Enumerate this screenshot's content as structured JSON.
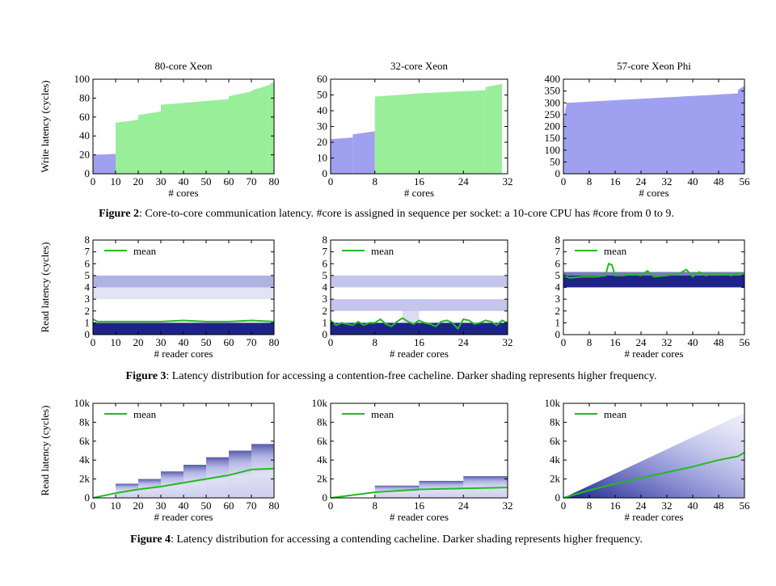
{
  "colors": {
    "green": "#99ee99",
    "blue": "#a0a0f0",
    "navy": "#1e238a",
    "mid_blue": "#7a7fd0",
    "light_blue": "#c4c6ea",
    "mean_line": "#22bb22"
  },
  "captions": [
    {
      "label": "Figure 2",
      "text": ": Core-to-core communication latency. #core is assigned in sequence per socket: a 10-core CPU has #core from 0 to 9."
    },
    {
      "label": "Figure 3",
      "text": ": Latency distribution for accessing a contention-free cacheline. Darker shading represents higher frequency."
    },
    {
      "label": "Figure 4",
      "text": ": Latency distribution for accessing a contending cacheline. Darker shading represents higher frequency."
    }
  ],
  "chart_data": [
    {
      "type": "bar",
      "figure": 2,
      "title": "80-core Xeon",
      "xlabel": "# cores",
      "ylabel": "Write latency (cycles)",
      "xlim": [
        0,
        80
      ],
      "ylim": [
        0,
        100
      ],
      "xticks": [
        0,
        10,
        20,
        30,
        40,
        50,
        60,
        70,
        80
      ],
      "xtick_labels": [
        "0",
        "10",
        "20",
        "30",
        "40",
        "50",
        "60",
        "70",
        "80"
      ],
      "yticks": [
        0,
        20,
        40,
        60,
        80,
        100
      ],
      "ytick_labels": [
        "0",
        "20",
        "40",
        "60",
        "80",
        "100"
      ],
      "segments": [
        {
          "color": "blue",
          "x": [
            0,
            10
          ],
          "y": [
            20,
            21
          ]
        },
        {
          "color": "green",
          "x": [
            10,
            20
          ],
          "y": [
            54,
            57
          ]
        },
        {
          "color": "green",
          "x": [
            20,
            30
          ],
          "y": [
            62,
            66
          ]
        },
        {
          "color": "green",
          "x": [
            30,
            45
          ],
          "y": [
            73,
            76
          ]
        },
        {
          "color": "green",
          "x": [
            45,
            60
          ],
          "y": [
            76,
            79
          ]
        },
        {
          "color": "green",
          "x": [
            60,
            70
          ],
          "y": [
            82,
            87
          ]
        },
        {
          "color": "green",
          "x": [
            70,
            78
          ],
          "y": [
            88,
            94
          ]
        },
        {
          "color": "green",
          "x": [
            78,
            80
          ],
          "y": [
            95,
            97
          ]
        }
      ]
    },
    {
      "type": "bar",
      "figure": 2,
      "title": "32-core Xeon",
      "xlim": [
        0,
        32
      ],
      "ylim": [
        0,
        60
      ],
      "xlabel": "# cores",
      "xticks": [
        0,
        8,
        16,
        24,
        32
      ],
      "xtick_labels": [
        "0",
        "8",
        "16",
        "24",
        "32"
      ],
      "yticks": [
        0,
        10,
        20,
        30,
        40,
        50,
        60
      ],
      "ytick_labels": [
        "0",
        "10",
        "20",
        "30",
        "40",
        "50",
        "60"
      ],
      "segments": [
        {
          "color": "blue",
          "x": [
            0,
            4
          ],
          "y": [
            22,
            23
          ]
        },
        {
          "color": "blue",
          "x": [
            4,
            8
          ],
          "y": [
            25,
            27
          ]
        },
        {
          "color": "green",
          "x": [
            8,
            16
          ],
          "y": [
            49,
            51
          ]
        },
        {
          "color": "green",
          "x": [
            16,
            28
          ],
          "y": [
            51,
            53
          ]
        },
        {
          "color": "green",
          "x": [
            28,
            31
          ],
          "y": [
            55,
            57
          ]
        }
      ]
    },
    {
      "type": "bar",
      "figure": 2,
      "title": "57-core Xeon Phi",
      "xlim": [
        0,
        56
      ],
      "ylim": [
        0,
        400
      ],
      "xlabel": "# cores",
      "xticks": [
        0,
        8,
        16,
        24,
        32,
        40,
        48,
        56
      ],
      "xtick_labels": [
        "0",
        "8",
        "16",
        "24",
        "32",
        "40",
        "48",
        "56"
      ],
      "yticks": [
        0,
        50,
        100,
        150,
        200,
        250,
        300,
        350,
        400
      ],
      "ytick_labels": [
        "0",
        "50",
        "100",
        "150",
        "200",
        "250",
        "300",
        "350",
        "400"
      ],
      "segments": [
        {
          "color": "blue",
          "x": [
            0,
            1
          ],
          "y": [
            225,
            300
          ]
        },
        {
          "color": "blue",
          "x": [
            1,
            54
          ],
          "y": [
            300,
            340
          ]
        },
        {
          "color": "blue",
          "x": [
            54,
            56
          ],
          "y": [
            355,
            372
          ]
        }
      ]
    },
    {
      "type": "heatmap",
      "figure": 3,
      "title": "",
      "xlabel": "# reader cores",
      "ylabel": "Read latency (cycles)",
      "xlim": [
        0,
        80
      ],
      "ylim": [
        0,
        8
      ],
      "legend": "mean",
      "legend_position": "top-left",
      "xticks": [
        0,
        10,
        20,
        30,
        40,
        50,
        60,
        70,
        80
      ],
      "xtick_labels": [
        "0",
        "10",
        "20",
        "30",
        "40",
        "50",
        "60",
        "70",
        "80"
      ],
      "yticks": [
        0,
        1,
        2,
        3,
        4,
        5,
        6,
        7,
        8
      ],
      "ytick_labels": [
        "0",
        "1",
        "2",
        "3",
        "4",
        "5",
        "6",
        "7",
        "8"
      ],
      "bands": [
        {
          "x": [
            0,
            80
          ],
          "y": [
            0,
            1
          ],
          "color": "navy",
          "opacity": 1
        },
        {
          "x": [
            0,
            80
          ],
          "y": [
            4,
            5
          ],
          "color": "mid_blue",
          "opacity": 0.6
        },
        {
          "x": [
            0,
            80
          ],
          "y": [
            3,
            4
          ],
          "color": "light_blue",
          "opacity": 0.5
        }
      ],
      "mean": {
        "x": [
          0,
          2,
          10,
          20,
          30,
          40,
          50,
          60,
          70,
          80
        ],
        "y": [
          1.3,
          1.1,
          1.1,
          1.1,
          1.1,
          1.2,
          1.1,
          1.1,
          1.2,
          1.1
        ]
      }
    },
    {
      "type": "heatmap",
      "figure": 3,
      "title": "",
      "xlabel": "# reader cores",
      "xlim": [
        0,
        32
      ],
      "ylim": [
        0,
        8
      ],
      "legend": "mean",
      "legend_position": "top-left",
      "xticks": [
        0,
        8,
        16,
        24,
        32
      ],
      "xtick_labels": [
        "0",
        "8",
        "16",
        "24",
        "32"
      ],
      "yticks": [
        0,
        1,
        2,
        3,
        4,
        5,
        6,
        7,
        8
      ],
      "ytick_labels": [
        "0",
        "1",
        "2",
        "3",
        "4",
        "5",
        "6",
        "7",
        "8"
      ],
      "bands": [
        {
          "x": [
            0,
            32
          ],
          "y": [
            0,
            1
          ],
          "color": "navy",
          "opacity": 1
        },
        {
          "x": [
            0,
            32
          ],
          "y": [
            4,
            5
          ],
          "color": "mid_blue",
          "opacity": 0.45
        },
        {
          "x": [
            0,
            32
          ],
          "y": [
            2,
            3
          ],
          "color": "mid_blue",
          "opacity": 0.45
        },
        {
          "x": [
            13,
            16
          ],
          "y": [
            1,
            3
          ],
          "color": "light_blue",
          "opacity": 0.6
        }
      ],
      "mean": {
        "x": [
          0,
          1,
          2,
          3,
          4,
          5,
          6,
          7,
          8,
          9,
          10,
          11,
          12,
          13,
          14,
          15,
          16,
          17,
          18,
          19,
          20,
          21,
          22,
          23,
          24,
          25,
          26,
          27,
          28,
          29,
          30,
          31,
          32
        ],
        "y": [
          1.2,
          0.8,
          1.0,
          0.9,
          0.8,
          1.1,
          0.8,
          1.0,
          1.0,
          1.3,
          0.9,
          0.7,
          1.1,
          1.4,
          1.1,
          0.9,
          1.2,
          1.0,
          0.9,
          0.7,
          1.1,
          1.2,
          1.0,
          0.5,
          1.3,
          1.2,
          0.9,
          1.0,
          1.2,
          1.1,
          0.8,
          1.2,
          1.0
        ]
      }
    },
    {
      "type": "heatmap",
      "figure": 3,
      "title": "",
      "xlabel": "# reader cores",
      "xlim": [
        0,
        56
      ],
      "ylim": [
        0,
        8
      ],
      "legend": "mean",
      "legend_position": "top-left",
      "xticks": [
        0,
        8,
        16,
        24,
        32,
        40,
        48,
        56
      ],
      "xtick_labels": [
        "0",
        "8",
        "16",
        "24",
        "32",
        "40",
        "48",
        "56"
      ],
      "yticks": [
        0,
        1,
        2,
        3,
        4,
        5,
        6,
        7,
        8
      ],
      "ytick_labels": [
        "0",
        "1",
        "2",
        "3",
        "4",
        "5",
        "6",
        "7",
        "8"
      ],
      "bands": [
        {
          "x": [
            0,
            56
          ],
          "y": [
            4,
            5
          ],
          "color": "navy",
          "opacity": 1
        },
        {
          "x": [
            0,
            56
          ],
          "y": [
            5,
            5.3
          ],
          "color": "navy",
          "opacity": 0.6
        }
      ],
      "mean": {
        "x": [
          0,
          2,
          6,
          10,
          13,
          14,
          15,
          16,
          18,
          22,
          24,
          26,
          28,
          32,
          36,
          38,
          40,
          42,
          44,
          48,
          52,
          54,
          56
        ],
        "y": [
          5.0,
          4.8,
          4.9,
          4.9,
          5.0,
          6.0,
          5.9,
          5.0,
          5.0,
          5.1,
          5.0,
          5.4,
          4.9,
          5.0,
          5.2,
          5.5,
          4.9,
          5.3,
          5.0,
          5.2,
          5.0,
          5.2,
          5.0
        ]
      }
    },
    {
      "type": "heatmap",
      "figure": 4,
      "title": "",
      "xlabel": "# reader cores",
      "ylabel": "Read latency (cycles)",
      "xlim": [
        0,
        80
      ],
      "ylim": [
        0,
        10000
      ],
      "legend": "mean",
      "legend_position": "top-left",
      "xticks": [
        0,
        10,
        20,
        30,
        40,
        50,
        60,
        70,
        80
      ],
      "xtick_labels": [
        "0",
        "10",
        "20",
        "30",
        "40",
        "50",
        "60",
        "70",
        "80"
      ],
      "yticks": [
        0,
        2000,
        4000,
        6000,
        8000,
        10000
      ],
      "ytick_labels": [
        "0",
        "2k",
        "4k",
        "6k",
        "8k",
        "10k"
      ],
      "columns": [
        {
          "x": [
            10,
            20
          ],
          "top": 1500
        },
        {
          "x": [
            20,
            30
          ],
          "top": 2000
        },
        {
          "x": [
            30,
            40
          ],
          "top": 2800
        },
        {
          "x": [
            40,
            50
          ],
          "top": 3500
        },
        {
          "x": [
            50,
            60
          ],
          "top": 4300
        },
        {
          "x": [
            60,
            70
          ],
          "top": 5000
        },
        {
          "x": [
            70,
            80
          ],
          "top": 5700
        }
      ],
      "mean": {
        "x": [
          0,
          10,
          20,
          30,
          40,
          50,
          60,
          70,
          80
        ],
        "y": [
          0,
          500,
          900,
          1200,
          1600,
          2000,
          2400,
          3000,
          3100
        ]
      }
    },
    {
      "type": "heatmap",
      "figure": 4,
      "title": "",
      "xlabel": "# reader cores",
      "xlim": [
        0,
        32
      ],
      "ylim": [
        0,
        10000
      ],
      "legend": "mean",
      "legend_position": "top-left",
      "xticks": [
        0,
        8,
        16,
        24,
        32
      ],
      "xtick_labels": [
        "0",
        "8",
        "16",
        "24",
        "32"
      ],
      "yticks": [
        0,
        2000,
        4000,
        6000,
        8000,
        10000
      ],
      "ytick_labels": [
        "0",
        "2k",
        "4k",
        "6k",
        "8k",
        "10k"
      ],
      "columns": [
        {
          "x": [
            8,
            16
          ],
          "top": 1300
        },
        {
          "x": [
            16,
            24
          ],
          "top": 1800
        },
        {
          "x": [
            24,
            32
          ],
          "top": 2300
        }
      ],
      "mean": {
        "x": [
          0,
          8,
          16,
          24,
          32
        ],
        "y": [
          0,
          600,
          900,
          1000,
          1100
        ]
      }
    },
    {
      "type": "heatmap",
      "figure": 4,
      "title": "",
      "xlabel": "# reader cores",
      "xlim": [
        0,
        56
      ],
      "ylim": [
        0,
        10000
      ],
      "legend": "mean",
      "legend_position": "top-left",
      "xticks": [
        0,
        8,
        16,
        24,
        32,
        40,
        48,
        56
      ],
      "xtick_labels": [
        "0",
        "8",
        "16",
        "24",
        "32",
        "40",
        "48",
        "56"
      ],
      "yticks": [
        0,
        2000,
        4000,
        6000,
        8000,
        10000
      ],
      "ytick_labels": [
        "0",
        "2k",
        "4k",
        "6k",
        "8k",
        "10k"
      ],
      "wedge": {
        "x": [
          0,
          56
        ],
        "top_end": 9000
      },
      "mean": {
        "x": [
          0,
          8,
          16,
          24,
          32,
          40,
          48,
          54,
          56
        ],
        "y": [
          0,
          800,
          1500,
          2100,
          2700,
          3300,
          4000,
          4400,
          4800
        ]
      }
    }
  ]
}
